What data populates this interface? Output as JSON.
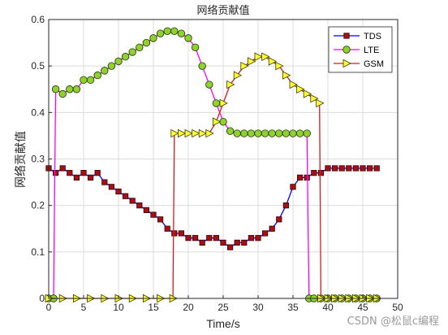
{
  "chart_data": {
    "type": "line",
    "title": "网络贡献值",
    "xlabel": "Time/s",
    "ylabel": "网络贡献值",
    "xlim": [
      0,
      50
    ],
    "ylim": [
      0,
      0.6
    ],
    "xticks": [
      "0",
      "5",
      "10",
      "15",
      "20",
      "25",
      "30",
      "35",
      "40",
      "45",
      "50"
    ],
    "yticks": [
      "0",
      "0.1",
      "0.2",
      "0.3",
      "0.4",
      "0.5",
      "0.6"
    ],
    "grid": true,
    "legend_position": "top-right",
    "series": [
      {
        "name": "TDS",
        "color": "#0000ff",
        "marker": "square",
        "marker_color": "#a50f15",
        "x": [
          0,
          1,
          2,
          3,
          4,
          5,
          6,
          7,
          8,
          9,
          10,
          11,
          12,
          13,
          14,
          15,
          16,
          17,
          18,
          19,
          20,
          21,
          22,
          23,
          24,
          25,
          26,
          27,
          28,
          29,
          30,
          31,
          32,
          33,
          34,
          35,
          36,
          37,
          38,
          39,
          40,
          41,
          42,
          43,
          44,
          45,
          46,
          47
        ],
        "values": [
          0.28,
          0.27,
          0.28,
          0.27,
          0.26,
          0.27,
          0.26,
          0.27,
          0.25,
          0.24,
          0.23,
          0.22,
          0.21,
          0.2,
          0.19,
          0.18,
          0.17,
          0.15,
          0.14,
          0.14,
          0.13,
          0.13,
          0.12,
          0.13,
          0.13,
          0.12,
          0.11,
          0.12,
          0.12,
          0.13,
          0.13,
          0.14,
          0.15,
          0.17,
          0.2,
          0.24,
          0.26,
          0.26,
          0.27,
          0.27,
          0.28,
          0.28,
          0.28,
          0.28,
          0.28,
          0.28,
          0.28,
          0.28
        ]
      },
      {
        "name": "LTE",
        "color": "#ff00ff",
        "marker": "circle",
        "marker_color": "#8fd12f",
        "x": [
          0,
          0.7,
          1,
          2,
          3,
          4,
          5,
          6,
          7,
          8,
          9,
          10,
          11,
          12,
          13,
          14,
          15,
          16,
          17,
          18,
          19,
          20,
          21,
          22,
          23,
          24,
          25,
          26,
          27,
          28,
          29,
          30,
          31,
          32,
          33,
          34,
          35,
          36,
          37,
          37.3,
          38,
          39,
          40,
          41,
          42,
          43,
          44,
          45,
          46,
          47
        ],
        "values": [
          0,
          0,
          0.45,
          0.44,
          0.45,
          0.45,
          0.47,
          0.47,
          0.48,
          0.49,
          0.5,
          0.51,
          0.52,
          0.53,
          0.54,
          0.55,
          0.56,
          0.57,
          0.575,
          0.575,
          0.57,
          0.56,
          0.54,
          0.5,
          0.46,
          0.42,
          0.38,
          0.36,
          0.355,
          0.355,
          0.355,
          0.355,
          0.355,
          0.355,
          0.355,
          0.355,
          0.355,
          0.355,
          0.355,
          0,
          0,
          0,
          0,
          0,
          0,
          0,
          0,
          0,
          0,
          0
        ]
      },
      {
        "name": "GSM",
        "color": "#d7191c",
        "marker": "triangle-right",
        "marker_color": "#ffff33",
        "x": [
          0,
          2,
          4,
          6,
          8,
          10,
          12,
          14,
          16,
          17.8,
          18,
          19,
          20,
          21,
          22,
          23,
          24,
          25,
          26,
          27,
          28,
          29,
          30,
          31,
          32,
          33,
          34,
          35,
          36,
          37,
          38,
          38.8,
          39,
          40,
          41,
          42,
          43,
          44,
          45,
          46,
          47
        ],
        "values": [
          0,
          0,
          0,
          0,
          0,
          0,
          0,
          0,
          0,
          0,
          0.355,
          0.355,
          0.355,
          0.355,
          0.355,
          0.355,
          0.38,
          0.42,
          0.46,
          0.48,
          0.5,
          0.51,
          0.52,
          0.52,
          0.51,
          0.5,
          0.48,
          0.46,
          0.45,
          0.44,
          0.43,
          0.42,
          0,
          0,
          0,
          0,
          0,
          0,
          0,
          0,
          0
        ]
      }
    ]
  },
  "watermark": "CSDN @松鼠c编程"
}
